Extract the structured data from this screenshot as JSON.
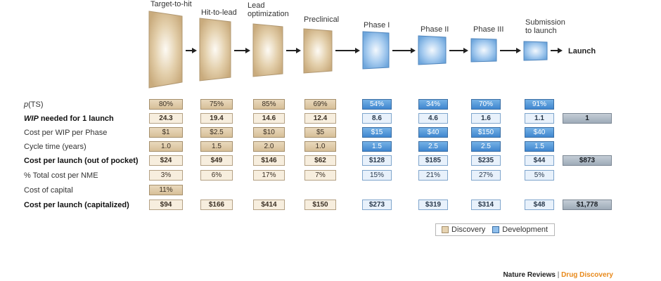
{
  "stages": [
    {
      "title": "Target-to-hit",
      "phase": "discovery"
    },
    {
      "title": "Hit-to-lead",
      "phase": "discovery"
    },
    {
      "title": "Lead\noptimization",
      "phase": "discovery"
    },
    {
      "title": "Preclinical",
      "phase": "discovery"
    },
    {
      "title": "Phase I",
      "phase": "development"
    },
    {
      "title": "Phase II",
      "phase": "development"
    },
    {
      "title": "Phase III",
      "phase": "development"
    },
    {
      "title": "Submission\nto launch",
      "phase": "development"
    }
  ],
  "launch_title": "Launch",
  "rows": [
    {
      "label_prefix": "p",
      "label": "(TS)",
      "bold": false,
      "italic_prefix": true,
      "values": [
        "80%",
        "75%",
        "85%",
        "69%",
        "54%",
        "34%",
        "70%",
        "91%"
      ],
      "total": null
    },
    {
      "label_prefix": "WIP",
      "label": " needed for 1 launch",
      "bold": true,
      "italic_prefix": true,
      "values": [
        "24.3",
        "19.4",
        "14.6",
        "12.4",
        "8.6",
        "4.6",
        "1.6",
        "1.1"
      ],
      "total": "1"
    },
    {
      "label_prefix": "",
      "label": "Cost per WIP per Phase",
      "bold": false,
      "values": [
        "$1",
        "$2.5",
        "$10",
        "$5",
        "$15",
        "$40",
        "$150",
        "$40"
      ],
      "total": null
    },
    {
      "label_prefix": "",
      "label": "Cycle time (years)",
      "bold": false,
      "values": [
        "1.0",
        "1.5",
        "2.0",
        "1.0",
        "1.5",
        "2.5",
        "2.5",
        "1.5"
      ],
      "total": null
    },
    {
      "label_prefix": "",
      "label": "Cost per launch (out of pocket)",
      "bold": true,
      "values": [
        "$24",
        "$49",
        "$146",
        "$62",
        "$128",
        "$185",
        "$235",
        "$44"
      ],
      "total": "$873"
    },
    {
      "label_prefix": "",
      "label": "% Total cost per NME",
      "bold": false,
      "values": [
        "3%",
        "6%",
        "17%",
        "7%",
        "15%",
        "21%",
        "27%",
        "5%"
      ],
      "total": null
    },
    {
      "label_prefix": "",
      "label": "Cost of capital",
      "bold": false,
      "values": [
        "11%",
        null,
        null,
        null,
        null,
        null,
        null,
        null
      ],
      "total": null
    },
    {
      "label_prefix": "",
      "label": "Cost per launch (capitalized)",
      "bold": true,
      "values": [
        "$94",
        "$166",
        "$414",
        "$150",
        "$273",
        "$319",
        "$314",
        "$48"
      ],
      "total": "$1,778"
    }
  ],
  "legend": {
    "discovery": "Discovery",
    "development": "Development"
  },
  "credit": {
    "journal": "Nature Reviews",
    "separator": " | ",
    "section": "Drug Discovery"
  },
  "colors": {
    "discovery": "#d7bf98",
    "development": "#3f86cf",
    "total": "#9eabb8"
  }
}
